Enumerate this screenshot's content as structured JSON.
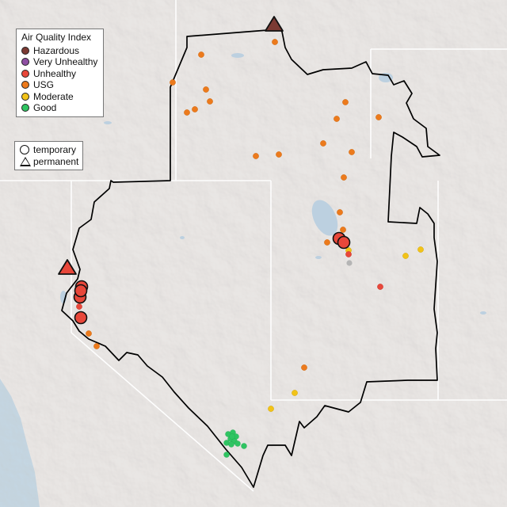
{
  "legend_aqi": {
    "title": "Air Quality Index",
    "items": [
      {
        "label": "Hazardous",
        "color": "#7b3a33"
      },
      {
        "label": "Very Unhealthy",
        "color": "#8e4fa3"
      },
      {
        "label": "Unhealthy",
        "color": "#e8473a"
      },
      {
        "label": "USG",
        "color": "#ec7a1c"
      },
      {
        "label": "Moderate",
        "color": "#f2c318"
      },
      {
        "label": "Good",
        "color": "#2fc462"
      }
    ]
  },
  "legend_type": {
    "items": [
      {
        "label": "temporary",
        "shape": "circle"
      },
      {
        "label": "permanent",
        "shape": "triangle"
      }
    ]
  },
  "colors": {
    "land": "#e9e6e4",
    "ocean": "#c4d6e2",
    "lakes": "#bcd0e0",
    "boundary": "#000000",
    "state_lines": "#ffffff"
  }
}
